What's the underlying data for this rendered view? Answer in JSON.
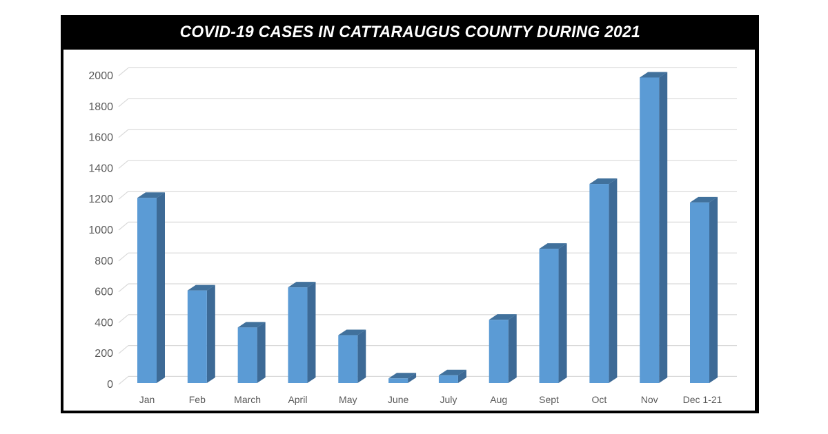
{
  "chart_data": {
    "type": "bar",
    "title": "COVID-19 CASES IN CATTARAUGUS COUNTY DURING 2021",
    "xlabel": "",
    "ylabel": "",
    "categories": [
      "Jan",
      "Feb",
      "March",
      "April",
      "May",
      "June",
      "July",
      "Aug",
      "Sept",
      "Oct",
      "Nov",
      "Dec 1-21"
    ],
    "values": [
      1200,
      600,
      360,
      620,
      310,
      30,
      50,
      410,
      870,
      1290,
      1980,
      1170
    ],
    "ylim": [
      0,
      2000
    ],
    "yticks": [
      0,
      200,
      400,
      600,
      800,
      1000,
      1200,
      1400,
      1600,
      1800,
      2000
    ],
    "grid": true,
    "legend": "none",
    "style": "3d-clustered-column",
    "colors": {
      "bar_front": "#5b9bd5",
      "bar_side": "#3d6a96",
      "bar_top": "#41719c",
      "grid": "#d9d9d9",
      "title_bg": "#000000",
      "title_text": "#ffffff"
    }
  },
  "header": {
    "title": "COVID-19 CASES IN CATTARAUGUS COUNTY DURING 2021"
  }
}
